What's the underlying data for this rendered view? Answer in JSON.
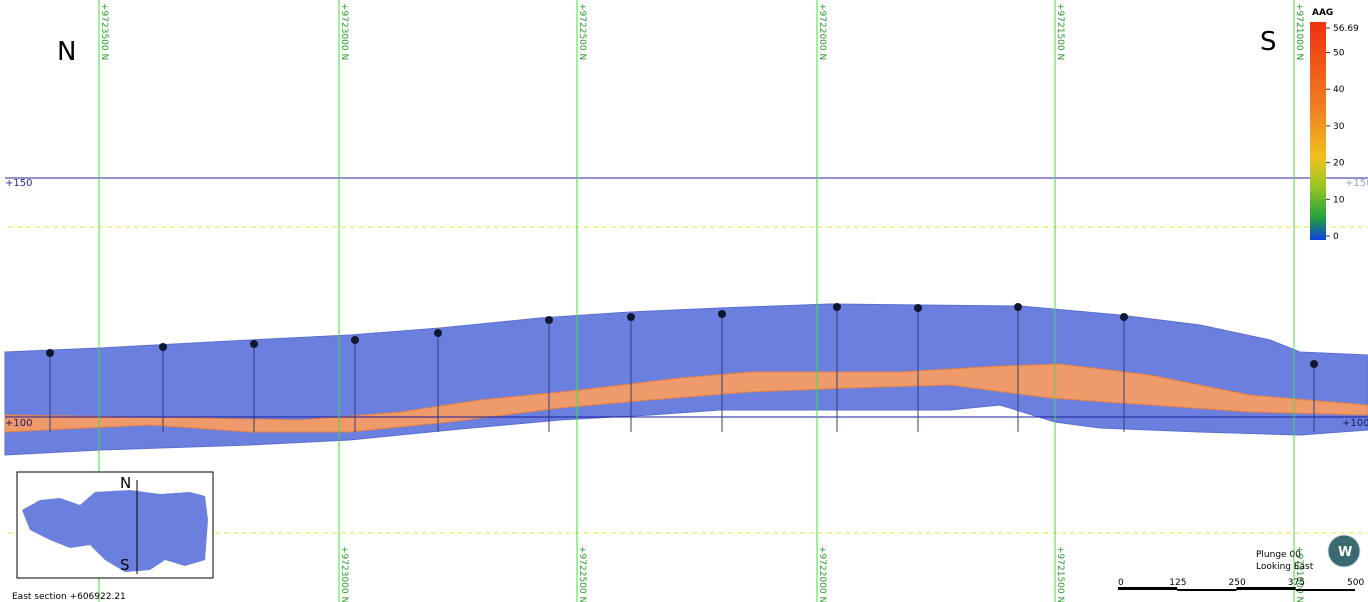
{
  "compass": {
    "left": "N",
    "right": "S"
  },
  "northings": [
    "+9723500 N",
    "+9723000 N",
    "+9722500 N",
    "+9722000 N",
    "+9721500 N",
    "+9721000 N"
  ],
  "elevations": [
    "+150",
    "+100"
  ],
  "legend": {
    "title": "AAG",
    "ticks": [
      56.69,
      50,
      40,
      30,
      20,
      10,
      0
    ]
  },
  "inset": {
    "north": "N",
    "south": "S"
  },
  "section_label": "East section +606922.21",
  "view": {
    "plunge": "Plunge 00",
    "looking": "Looking East"
  },
  "scale_bar": [
    0,
    125,
    250,
    375,
    500
  ]
}
